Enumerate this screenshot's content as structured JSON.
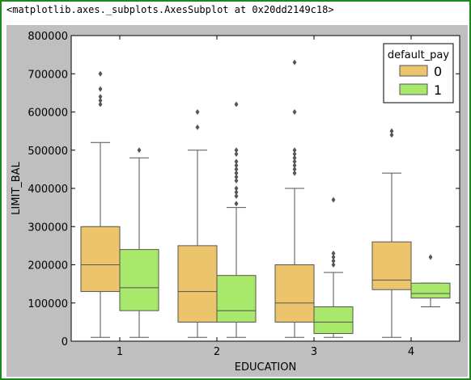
{
  "output": {
    "repr_text": "<matplotlib.axes._subplots.AxesSubplot at 0x20dd2149c18>"
  },
  "colors": {
    "figure_bg": "#bfbfbf",
    "axes_bg": "#ffffff",
    "box_edge": "#555555",
    "series_0": "#ecc46c",
    "series_1": "#a8e86a"
  },
  "chart_data": {
    "type": "box",
    "title": "",
    "xlabel": "EDUCATION",
    "ylabel": "LIMIT_BAL",
    "categories": [
      "1",
      "2",
      "3",
      "4"
    ],
    "ylim": [
      0,
      800000
    ],
    "yticks": [
      0,
      100000,
      200000,
      300000,
      400000,
      500000,
      600000,
      700000,
      800000
    ],
    "ytick_labels": [
      "0",
      "100000",
      "200000",
      "300000",
      "400000",
      "500000",
      "600000",
      "700000",
      "800000"
    ],
    "grid": false,
    "legend": {
      "title": "default_pay",
      "placement": "top-right"
    },
    "series": [
      {
        "name": "0",
        "color": "#ecc46c",
        "boxes": [
          {
            "category": "1",
            "whisker_low": 10000,
            "q1": 130000,
            "median": 200000,
            "q3": 300000,
            "whisker_high": 520000,
            "outliers": [
              620000,
              630000,
              640000,
              660000,
              700000
            ]
          },
          {
            "category": "2",
            "whisker_low": 10000,
            "q1": 50000,
            "median": 130000,
            "q3": 250000,
            "whisker_high": 500000,
            "outliers": [
              560000,
              600000
            ]
          },
          {
            "category": "3",
            "whisker_low": 10000,
            "q1": 50000,
            "median": 100000,
            "q3": 200000,
            "whisker_high": 400000,
            "outliers": [
              440000,
              450000,
              460000,
              470000,
              480000,
              490000,
              500000,
              600000,
              730000
            ]
          },
          {
            "category": "4",
            "whisker_low": 10000,
            "q1": 135000,
            "median": 160000,
            "q3": 260000,
            "whisker_high": 440000,
            "outliers": [
              540000,
              550000
            ]
          }
        ]
      },
      {
        "name": "1",
        "color": "#a8e86a",
        "boxes": [
          {
            "category": "1",
            "whisker_low": 10000,
            "q1": 80000,
            "median": 140000,
            "q3": 240000,
            "whisker_high": 480000,
            "outliers": [
              500000
            ]
          },
          {
            "category": "2",
            "whisker_low": 10000,
            "q1": 50000,
            "median": 80000,
            "q3": 172000,
            "whisker_high": 350000,
            "outliers": [
              360000,
              380000,
              390000,
              400000,
              420000,
              430000,
              440000,
              450000,
              460000,
              470000,
              490000,
              500000,
              620000
            ]
          },
          {
            "category": "3",
            "whisker_low": 10000,
            "q1": 20000,
            "median": 50000,
            "q3": 90000,
            "whisker_high": 180000,
            "outliers": [
              200000,
              210000,
              220000,
              230000,
              370000
            ]
          },
          {
            "category": "4",
            "whisker_low": 90000,
            "q1": 113000,
            "median": 125000,
            "q3": 152000,
            "whisker_high": 152000,
            "outliers": [
              220000
            ]
          }
        ]
      }
    ]
  }
}
